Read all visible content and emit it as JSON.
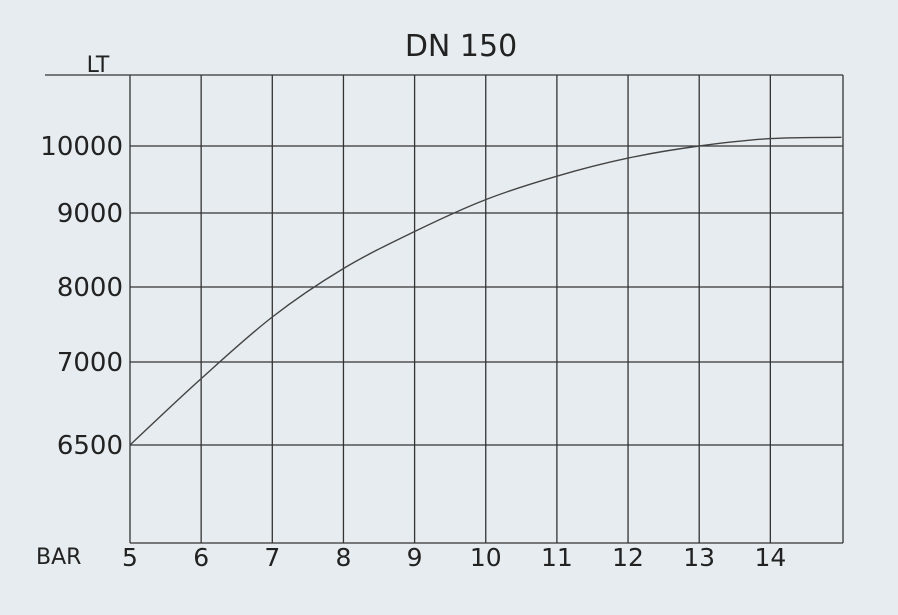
{
  "chart_data": {
    "type": "line",
    "title": "DN 150",
    "ylabel": "LT",
    "xlabel": "BAR",
    "x_ticks": [
      "5",
      "6",
      "7",
      "8",
      "9",
      "10",
      "11",
      "12",
      "13",
      "14"
    ],
    "y_ticks": [
      {
        "label": "6500",
        "value": 6500
      },
      {
        "label": "7000",
        "value": 7000
      },
      {
        "label": "8000",
        "value": 8000
      },
      {
        "label": "9000",
        "value": 9000
      },
      {
        "label": "10000",
        "value": 10000
      }
    ],
    "grid": true,
    "series": [
      {
        "x": [
          5,
          6,
          7,
          8,
          9,
          10,
          11,
          12,
          13,
          14,
          15
        ],
        "values": [
          6500,
          6900,
          7600,
          8250,
          8750,
          9200,
          9550,
          9820,
          10000,
          10110,
          10130
        ]
      }
    ]
  }
}
